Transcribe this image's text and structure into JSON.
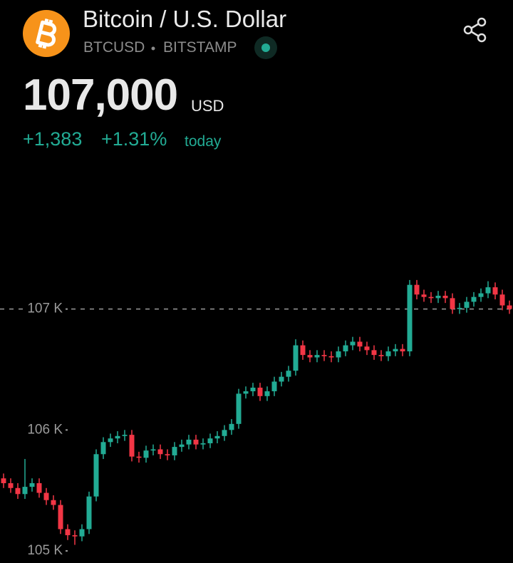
{
  "header": {
    "title": "Bitcoin / U.S. Dollar",
    "symbol": "BTCUSD",
    "exchange": "BITSTAMP",
    "price": "107,000",
    "currency": "USD",
    "change": "+1,383",
    "change_percent": "+1.31%",
    "period": "today"
  },
  "chart_data": {
    "type": "candlestick",
    "up_color": "#22ab94",
    "down_color": "#f23645",
    "ylim": [
      104900,
      108200
    ],
    "yticks": [
      {
        "value": 105000,
        "label": "105 K"
      },
      {
        "value": 106000,
        "label": "106 K"
      },
      {
        "value": 107000,
        "label": "107 K"
      }
    ],
    "open": [
      105600,
      105560,
      105520,
      105470,
      105530,
      105560,
      105480,
      105420,
      105380,
      105180,
      105130,
      105120,
      105180,
      105450,
      105800,
      105900,
      105930,
      105950,
      105960,
      105780,
      105770,
      105830,
      105840,
      105800,
      105790,
      105860,
      105880,
      105920,
      105880,
      105890,
      105930,
      105950,
      106000,
      106050,
      106300,
      106320,
      106350,
      106280,
      106320,
      106400,
      106440,
      106490,
      106700,
      106620,
      106600,
      106620,
      106610,
      106600,
      106650,
      106700,
      106730,
      106690,
      106660,
      106620,
      106610,
      106650,
      106670,
      106650,
      107200,
      107120,
      107100,
      107090,
      107110,
      107090,
      107000,
      107010,
      107060,
      107100,
      107130,
      107180,
      107120,
      107030
    ],
    "high": [
      105640,
      105600,
      105560,
      105760,
      105600,
      105600,
      105520,
      105460,
      105420,
      105220,
      105170,
      105220,
      105490,
      105840,
      105940,
      105970,
      105990,
      106000,
      106000,
      105820,
      105870,
      105880,
      105880,
      105840,
      105900,
      105920,
      105960,
      105960,
      105930,
      105970,
      105990,
      106040,
      106090,
      106340,
      106360,
      106390,
      106390,
      106360,
      106440,
      106480,
      106530,
      106750,
      106740,
      106660,
      106660,
      106660,
      106650,
      106690,
      106740,
      106770,
      106770,
      106730,
      106700,
      106660,
      106690,
      106710,
      106710,
      107240,
      107240,
      107160,
      107140,
      107150,
      107150,
      107130,
      107050,
      107100,
      107140,
      107170,
      107230,
      107220,
      107160,
      107070
    ],
    "low": [
      105520,
      105480,
      105430,
      105430,
      105490,
      105440,
      105380,
      105340,
      105140,
      105090,
      105050,
      105080,
      105140,
      105410,
      105760,
      105860,
      105890,
      105910,
      105740,
      105730,
      105730,
      105790,
      105760,
      105750,
      105750,
      105820,
      105840,
      105840,
      105840,
      105850,
      105890,
      105910,
      105960,
      106010,
      106260,
      106280,
      106240,
      106240,
      106280,
      106360,
      106400,
      106450,
      106580,
      106560,
      106560,
      106570,
      106560,
      106560,
      106610,
      106660,
      106650,
      106620,
      106580,
      106570,
      106570,
      106610,
      106610,
      106610,
      107080,
      107060,
      107050,
      107050,
      107050,
      106960,
      106960,
      106970,
      107020,
      107060,
      107090,
      107080,
      106990,
      106960
    ],
    "close": [
      105560,
      105520,
      105470,
      105530,
      105560,
      105480,
      105420,
      105380,
      105180,
      105130,
      105120,
      105180,
      105450,
      105800,
      105900,
      105930,
      105950,
      105960,
      105780,
      105770,
      105830,
      105840,
      105800,
      105790,
      105860,
      105880,
      105920,
      105880,
      105890,
      105930,
      105950,
      106000,
      106050,
      106300,
      106320,
      106350,
      106280,
      106320,
      106400,
      106440,
      106490,
      106700,
      106620,
      106600,
      106620,
      106610,
      106600,
      106650,
      106700,
      106730,
      106690,
      106660,
      106620,
      106610,
      106650,
      106670,
      106650,
      107200,
      107120,
      107100,
      107090,
      107110,
      107090,
      107000,
      107010,
      107060,
      107100,
      107130,
      107180,
      107120,
      107030,
      107000
    ]
  }
}
